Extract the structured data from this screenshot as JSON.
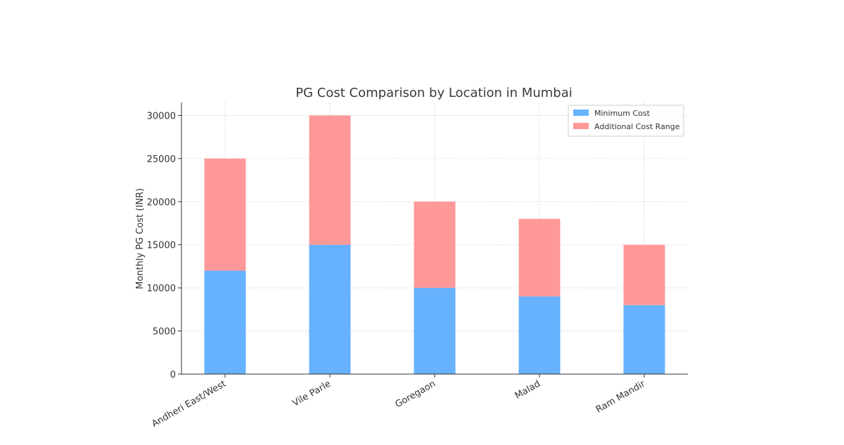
{
  "chart_data": {
    "type": "bar",
    "stacked": true,
    "title": "PG Cost Comparison by Location in Mumbai",
    "xlabel": "",
    "ylabel": "Monthly PG Cost (INR)",
    "categories": [
      "Andheri East/West",
      "Vile Parle",
      "Goregaon",
      "Malad",
      "Ram Mandir"
    ],
    "series": [
      {
        "name": "Minimum Cost",
        "values": [
          12000,
          15000,
          10000,
          9000,
          8000
        ],
        "color": "#66b2ff"
      },
      {
        "name": "Additional Cost Range",
        "values": [
          13000,
          15000,
          10000,
          9000,
          7000
        ],
        "color": "#ff9999"
      }
    ],
    "ylim": [
      0,
      31500
    ],
    "yticks": [
      0,
      5000,
      10000,
      15000,
      20000,
      25000,
      30000
    ],
    "ytick_labels": [
      "0",
      "5000",
      "10000",
      "15000",
      "20000",
      "25000",
      "30000"
    ],
    "grid": true,
    "legend_position": "top-right"
  },
  "colors": {
    "grid": "#d0d0d0",
    "axis": "#333333"
  }
}
